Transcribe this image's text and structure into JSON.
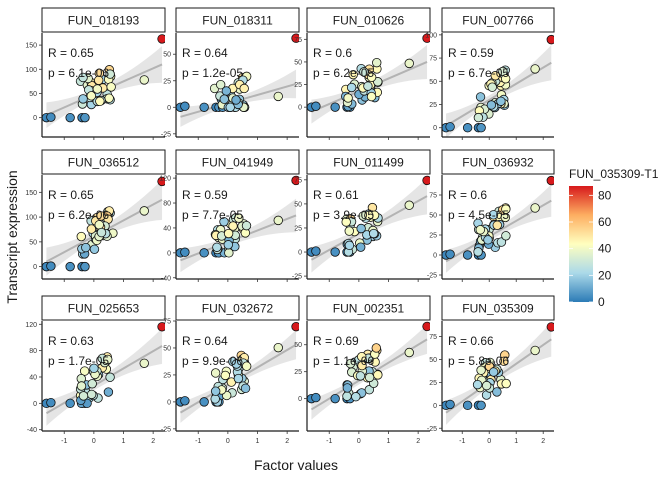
{
  "chart_data": {
    "type": "scatter",
    "layout": "facet-grid-3x4",
    "xlabel": "Factor values",
    "ylabel": "Transcript expression",
    "x_ticks": [
      -1,
      0,
      1,
      2
    ],
    "xlim": [
      -1.75,
      2.4
    ],
    "color_scale": {
      "title": "FUN_035309-T1",
      "ticks": [
        0,
        20,
        40,
        60,
        80
      ],
      "range": [
        0,
        87
      ],
      "palette": [
        "#2c7bb6",
        "#abd9e9",
        "#ffffbf",
        "#fdae61",
        "#d7191c"
      ]
    },
    "panels": [
      {
        "title": "FUN_018193",
        "R": "R = 0.65",
        "p": "p = 6.1e-06",
        "ylim": [
          -40,
          175
        ],
        "yticks": [
          0,
          50,
          100,
          150
        ],
        "fit": [
          [
            -1.6,
            5
          ],
          [
            2.3,
            110
          ]
        ],
        "ci": 28
      },
      {
        "title": "FUN_018311",
        "R": "R = 0.64",
        "p": "p = 1.2e-05",
        "ylim": [
          -28,
          70
        ],
        "yticks": [
          -25,
          0,
          25,
          50
        ],
        "fit": [
          [
            -1.6,
            -9
          ],
          [
            2.3,
            22
          ]
        ],
        "ci": 10
      },
      {
        "title": "FUN_010626",
        "R": "R = 0.6",
        "p": "p = 6.2e-05",
        "ylim": [
          -33,
          82
        ],
        "yticks": [
          0,
          25,
          50,
          75
        ],
        "fit": [
          [
            -1.6,
            -5
          ],
          [
            2.3,
            50
          ]
        ],
        "ci": 14
      },
      {
        "title": "FUN_007766",
        "R": "R = 0.59",
        "p": "p = 6.7e-05",
        "ylim": [
          -10,
          102
        ],
        "yticks": [
          0,
          25,
          50,
          75,
          100
        ],
        "fit": [
          [
            -1.6,
            2
          ],
          [
            2.3,
            70
          ]
        ],
        "ci": 14
      },
      {
        "title": "FUN_036512",
        "R": "R = 0.65",
        "p": "p = 6.2e-06",
        "ylim": [
          -25,
          185
        ],
        "yticks": [
          0,
          50,
          100,
          150
        ],
        "fit": [
          [
            -1.6,
            10
          ],
          [
            2.3,
            135
          ]
        ],
        "ci": 30
      },
      {
        "title": "FUN_041949",
        "R": "R = 0.59",
        "p": "p = 7.7e-05",
        "ylim": [
          -42,
          125
        ],
        "yticks": [
          -40,
          0,
          40,
          80,
          120
        ],
        "fit": [
          [
            -1.6,
            -12
          ],
          [
            2.3,
            60
          ]
        ],
        "ci": 20
      },
      {
        "title": "FUN_011499",
        "R": "R = 0.61",
        "p": "p = 3.9e-05",
        "ylim": [
          -28,
          80
        ],
        "yticks": [
          -25,
          0,
          25,
          50,
          75
        ],
        "fit": [
          [
            -1.6,
            -8
          ],
          [
            2.3,
            58
          ]
        ],
        "ci": 14
      },
      {
        "title": "FUN_036932",
        "R": "R = 0.6",
        "p": "p = 4.5e-05",
        "ylim": [
          -30,
          100
        ],
        "yticks": [
          -25,
          0,
          25,
          50,
          75
        ],
        "fit": [
          [
            -1.6,
            -8
          ],
          [
            2.3,
            68
          ]
        ],
        "ci": 15
      },
      {
        "title": "FUN_025653",
        "R": "R = 0.63",
        "p": "p = 1.7e-05",
        "ylim": [
          -42,
          125
        ],
        "yticks": [
          -40,
          0,
          40,
          80,
          120
        ],
        "fit": [
          [
            -1.6,
            -15
          ],
          [
            2.3,
            87
          ]
        ],
        "ci": 20
      },
      {
        "title": "FUN_032672",
        "R": "R = 0.64",
        "p": "p = 9.9e-06",
        "ylim": [
          -27,
          75
        ],
        "yticks": [
          -25,
          0,
          25,
          50,
          75
        ],
        "fit": [
          [
            -1.6,
            -10
          ],
          [
            2.3,
            53
          ]
        ],
        "ci": 10
      },
      {
        "title": "FUN_002351",
        "R": "R = 0.69",
        "p": "p = 1.1e-06",
        "ylim": [
          -30,
          72
        ],
        "yticks": [
          0,
          25,
          50
        ],
        "fit": [
          [
            -1.6,
            -10
          ],
          [
            2.3,
            55
          ]
        ],
        "ci": 10
      },
      {
        "title": "FUN_035309",
        "R": "R = 0.66",
        "p": "p = 5.8e-06",
        "ylim": [
          -28,
          92
        ],
        "yticks": [
          -25,
          0,
          25,
          50,
          75
        ],
        "fit": [
          [
            -1.6,
            -8
          ],
          [
            2.3,
            72
          ]
        ],
        "ci": 14
      }
    ]
  }
}
